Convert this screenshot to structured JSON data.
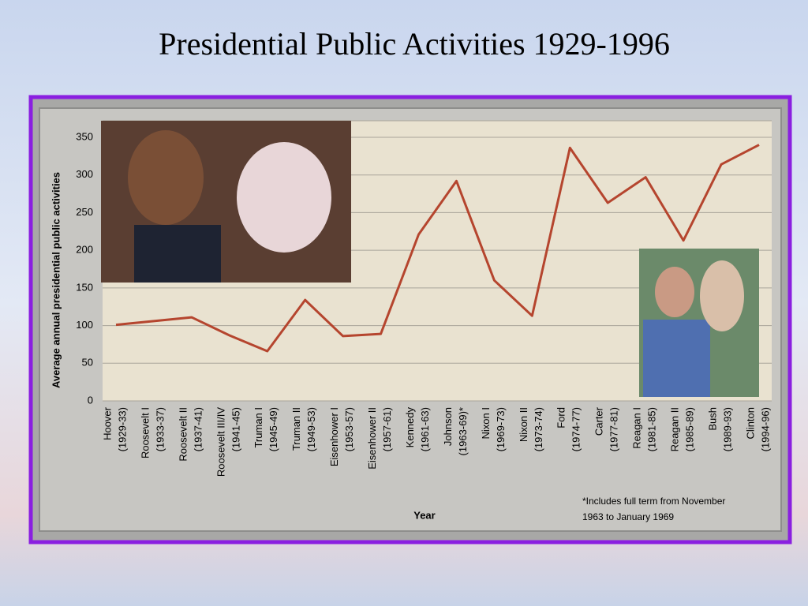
{
  "chart_data": {
    "type": "line",
    "title": "Presidential Public Activities 1929-1996",
    "y_label": "Average annual presidential public activities",
    "x_label": "Year",
    "note": [
      "*Includes full term from November",
      "1963 to January 1969"
    ],
    "categories": [
      [
        "Hoover",
        "(1929-33)"
      ],
      [
        "Roosevelt I",
        "(1933-37)"
      ],
      [
        "Roosevelt II",
        "(1937-41)"
      ],
      [
        "Roosevelt III/IV",
        "(1941-45)"
      ],
      [
        "Truman I",
        "(1945-49)"
      ],
      [
        "Truman II",
        "(1949-53)"
      ],
      [
        "Eisenhower I",
        "(1953-57)"
      ],
      [
        "Eisenhower II",
        "(1957-61)"
      ],
      [
        "Kennedy",
        "(1961-63)"
      ],
      [
        "Johnson",
        "(1963-69)*"
      ],
      [
        "Nixon I",
        "(1969-73)"
      ],
      [
        "Nixon II",
        "(1973-74)"
      ],
      [
        "Ford",
        "(1974-77)"
      ],
      [
        "Carter",
        "(1977-81)"
      ],
      [
        "Reagan I",
        "(1981-85)"
      ],
      [
        "Reagan II",
        "(1985-89)"
      ],
      [
        "Bush",
        "(1989-93)"
      ],
      [
        "Clinton",
        "(1994-96)"
      ]
    ],
    "values": [
      101,
      106,
      111,
      87,
      66,
      134,
      86,
      89,
      221,
      292,
      160,
      113,
      336,
      263,
      297,
      213,
      314,
      340
    ],
    "color": "#b5452e",
    "ylim": [
      0,
      350
    ],
    "yticks": [
      0,
      50,
      100,
      150,
      200,
      250,
      300,
      350
    ],
    "grid": true
  }
}
